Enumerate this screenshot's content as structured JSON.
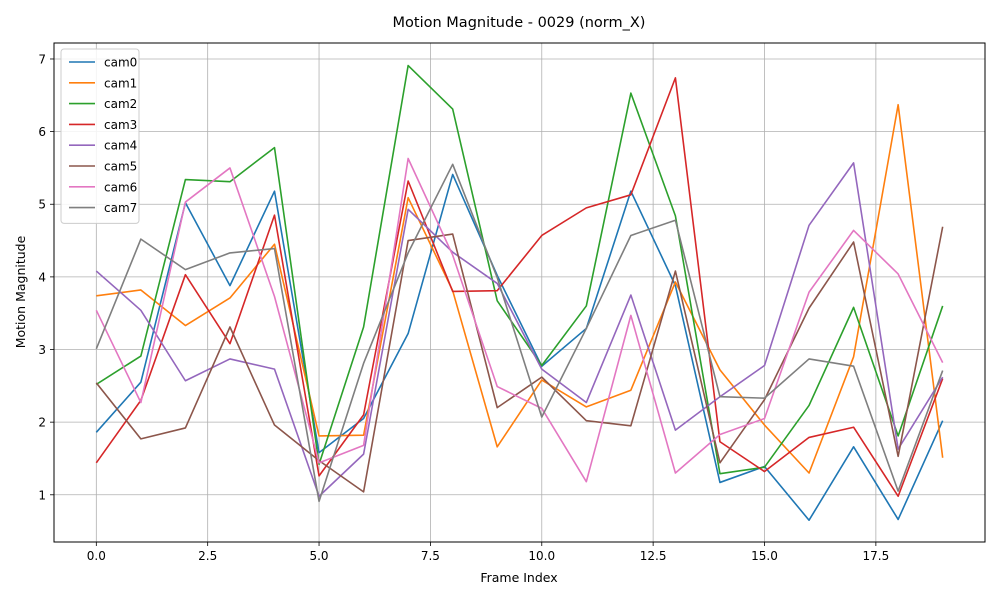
{
  "chart_data": {
    "type": "line",
    "title": "Motion Magnitude - 0029 (norm_X)",
    "xlabel": "Frame Index",
    "ylabel": "Motion Magnitude",
    "xlim": [
      -0.95,
      19.95
    ],
    "ylim": [
      0.35,
      7.22
    ],
    "xticks": [
      0,
      2.5,
      5,
      7.5,
      10,
      12.5,
      15,
      17.5
    ],
    "xtick_labels": [
      "0.0",
      "2.5",
      "5.0",
      "7.5",
      "10.0",
      "12.5",
      "15.0",
      "17.5"
    ],
    "yticks": [
      1,
      2,
      3,
      4,
      5,
      6,
      7
    ],
    "ytick_labels": [
      "1",
      "2",
      "3",
      "4",
      "5",
      "6",
      "7"
    ],
    "grid": true,
    "legend_position": "top-left",
    "x": [
      0,
      1,
      2,
      3,
      4,
      5,
      6,
      7,
      8,
      9,
      10,
      11,
      12,
      13,
      14,
      15,
      16,
      17,
      18,
      19
    ],
    "series": [
      {
        "name": "cam0",
        "color": "#1f77b4",
        "values": [
          1.86,
          2.55,
          5.02,
          3.88,
          5.18,
          1.58,
          2.05,
          3.22,
          5.41,
          4.02,
          2.77,
          3.29,
          5.18,
          3.88,
          1.17,
          1.39,
          0.65,
          1.66,
          0.66,
          2.02
        ]
      },
      {
        "name": "cam1",
        "color": "#ff7f0e",
        "values": [
          3.74,
          3.82,
          3.33,
          3.71,
          4.45,
          1.81,
          1.82,
          5.09,
          3.81,
          1.66,
          2.58,
          2.21,
          2.44,
          3.93,
          2.72,
          1.96,
          1.3,
          2.9,
          6.37,
          1.51
        ]
      },
      {
        "name": "cam2",
        "color": "#2ca02c",
        "values": [
          2.52,
          2.91,
          5.34,
          5.31,
          5.78,
          1.42,
          3.31,
          6.91,
          6.31,
          3.67,
          2.78,
          3.6,
          6.53,
          4.84,
          1.29,
          1.38,
          2.23,
          3.58,
          1.81,
          3.6
        ]
      },
      {
        "name": "cam3",
        "color": "#d62728",
        "values": [
          1.44,
          2.3,
          4.03,
          3.08,
          4.85,
          1.26,
          2.1,
          5.32,
          3.8,
          3.81,
          4.57,
          4.95,
          5.13,
          6.74,
          1.73,
          1.32,
          1.79,
          1.93,
          0.98,
          2.6
        ]
      },
      {
        "name": "cam4",
        "color": "#9467bd",
        "values": [
          4.08,
          3.54,
          2.57,
          2.87,
          2.73,
          0.98,
          1.56,
          4.93,
          4.34,
          3.91,
          2.73,
          2.27,
          3.75,
          1.89,
          2.35,
          2.78,
          4.71,
          5.57,
          1.63,
          2.62
        ]
      },
      {
        "name": "cam5",
        "color": "#8c564b",
        "values": [
          2.54,
          1.77,
          1.92,
          3.31,
          1.96,
          1.47,
          1.04,
          4.5,
          4.59,
          2.2,
          2.62,
          2.02,
          1.95,
          4.08,
          1.44,
          2.31,
          3.57,
          4.48,
          1.53,
          4.69
        ]
      },
      {
        "name": "cam6",
        "color": "#e377c2",
        "values": [
          3.54,
          2.27,
          5.03,
          5.5,
          3.73,
          1.44,
          1.68,
          5.63,
          4.3,
          2.49,
          2.19,
          1.18,
          3.47,
          1.3,
          1.83,
          2.05,
          3.79,
          4.64,
          4.04,
          2.82
        ]
      },
      {
        "name": "cam7",
        "color": "#7f7f7f",
        "values": [
          3.01,
          4.52,
          4.1,
          4.33,
          4.39,
          0.91,
          2.81,
          4.33,
          5.55,
          3.99,
          2.07,
          3.29,
          4.57,
          4.78,
          2.35,
          2.33,
          2.87,
          2.77,
          1.05,
          2.71
        ]
      }
    ]
  }
}
